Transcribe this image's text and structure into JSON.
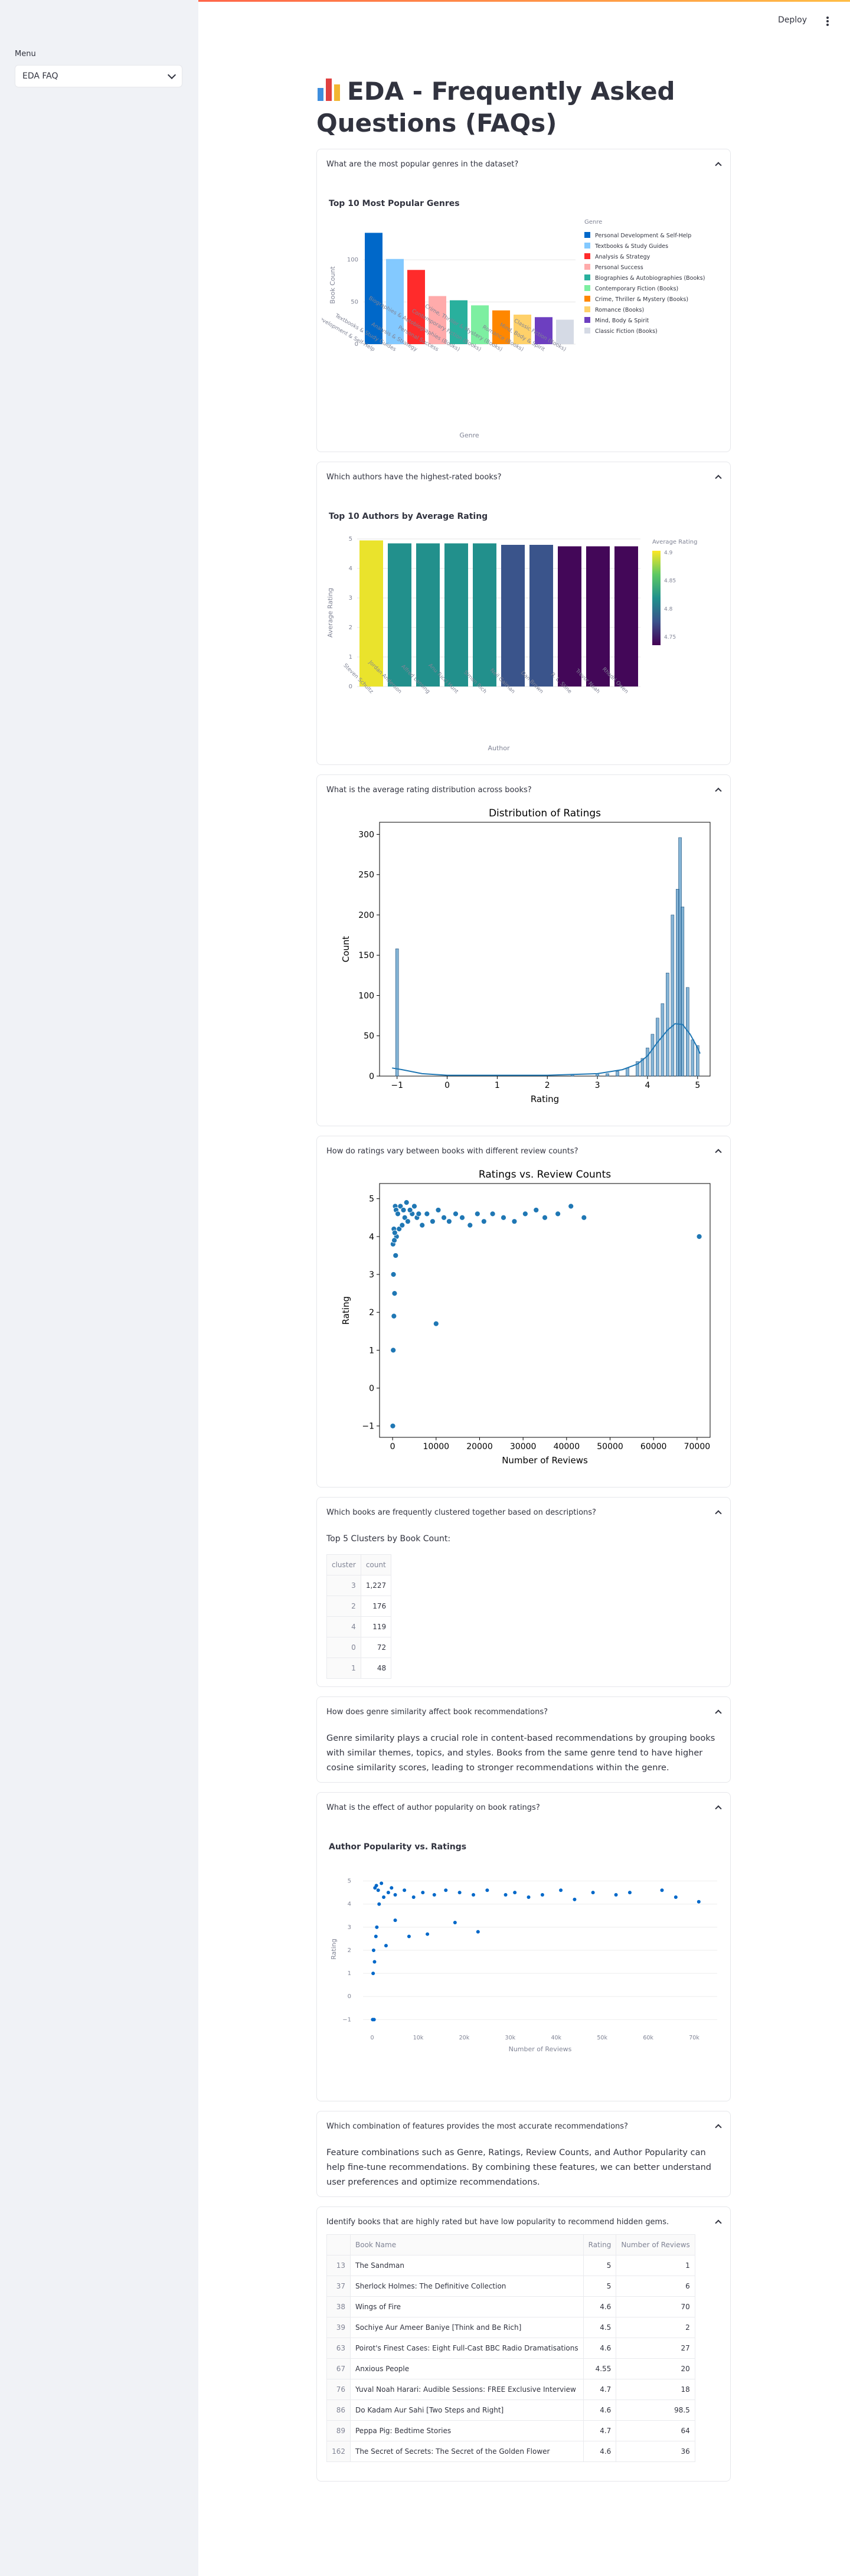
{
  "sidebar": {
    "label": "Menu",
    "selected": "EDA FAQ"
  },
  "header": {
    "deploy_label": "Deploy"
  },
  "page": {
    "title": "EDA - Frequently Asked Questions (FAQs)"
  },
  "faqs": {
    "genres": {
      "question": "What are the most popular genres in the dataset?",
      "chart_title": "Top 10 Most Popular Genres"
    },
    "authors": {
      "question": "Which authors have the highest-rated books?",
      "chart_title": "Top 10 Authors by Average Rating"
    },
    "rating_dist": {
      "question": "What is the average rating distribution across books?"
    },
    "rating_reviews": {
      "question": "How do ratings vary between books with different review counts?"
    },
    "clusters": {
      "question": "Which books are frequently clustered together based on descriptions?",
      "caption": "Top 5 Clusters by Book Count:",
      "columns": [
        "cluster",
        "count"
      ],
      "rows": [
        {
          "cluster": "3",
          "count": "1,227"
        },
        {
          "cluster": "2",
          "count": "176"
        },
        {
          "cluster": "4",
          "count": "119"
        },
        {
          "cluster": "0",
          "count": "72"
        },
        {
          "cluster": "1",
          "count": "48"
        }
      ]
    },
    "genre_similarity": {
      "question": "How does genre similarity affect book recommendations?",
      "answer": "Genre similarity plays a crucial role in content-based recommendations by grouping books with similar themes, topics, and styles. Books from the same genre tend to have higher cosine similarity scores, leading to stronger recommendations within the genre."
    },
    "author_popularity": {
      "question": "What is the effect of author popularity on book ratings?",
      "chart_title": "Author Popularity vs. Ratings"
    },
    "feature_combination": {
      "question": "Which combination of features provides the most accurate recommendations?",
      "answer": "Feature combinations such as Genre, Ratings, Review Counts, and Author Popularity can help fine-tune recommendations. By combining these features, we can better understand user preferences and optimize recommendations."
    },
    "hidden_gems": {
      "question": "Identify books that are highly rated but have low popularity to recommend hidden gems.",
      "columns": [
        "",
        "Book Name",
        "Rating",
        "Number of Reviews"
      ],
      "rows": [
        {
          "idx": "13",
          "name": "The Sandman",
          "rating": "5",
          "reviews": "1"
        },
        {
          "idx": "37",
          "name": "Sherlock Holmes: The Definitive Collection",
          "rating": "5",
          "reviews": "6"
        },
        {
          "idx": "38",
          "name": "Wings of Fire",
          "rating": "4.6",
          "reviews": "70"
        },
        {
          "idx": "39",
          "name": "Sochiye Aur Ameer Baniye [Think and Be Rich]",
          "rating": "4.5",
          "reviews": "2"
        },
        {
          "idx": "63",
          "name": "Poirot's Finest Cases: Eight Full-Cast BBC Radio Dramatisations",
          "rating": "4.6",
          "reviews": "27"
        },
        {
          "idx": "67",
          "name": "Anxious People",
          "rating": "4.55",
          "reviews": "20"
        },
        {
          "idx": "76",
          "name": "Yuval Noah Harari: Audible Sessions: FREE Exclusive Interview",
          "rating": "4.7",
          "reviews": "18"
        },
        {
          "idx": "86",
          "name": "Do Kadam Aur Sahi [Two Steps and Right]",
          "rating": "4.6",
          "reviews": "98.5"
        },
        {
          "idx": "89",
          "name": "Peppa Pig: Bedtime Stories",
          "rating": "4.7",
          "reviews": "64"
        },
        {
          "idx": "162",
          "name": "The Secret of Secrets: The Secret of the Golden Flower",
          "rating": "4.6",
          "reviews": "36"
        }
      ]
    }
  },
  "colors": {
    "accent": "#ff4b4b",
    "plot_blue": "#1f77b4"
  },
  "chart_data": [
    {
      "id": "genres",
      "type": "bar",
      "title": "Top 10 Most Popular Genres",
      "xlabel": "Genre",
      "ylabel": "Book Count",
      "legend_title": "Genre",
      "legend_placement": "right",
      "categories": [
        "Personal Development & Self-Help",
        "Textbooks & Study Guides",
        "Analysis & Strategy",
        "Personal Success",
        "Biographies & Autobiographies (Books)",
        "Contemporary Fiction (Books)",
        "Crime, Thriller & Mystery (Books)",
        "Romance (Books)",
        "Mind, Body & Spirit",
        "Classic Fiction (Books)"
      ],
      "values": [
        132,
        101,
        88,
        57,
        52,
        46,
        40,
        35,
        32,
        29
      ],
      "colors": [
        "#0068c9",
        "#83c9ff",
        "#ff2b2b",
        "#ffabab",
        "#29b09d",
        "#7defa1",
        "#ff8700",
        "#ffd16a",
        "#6d3fc0",
        "#d5dae5"
      ],
      "yticks": [
        0,
        50,
        100
      ],
      "ylim": [
        0,
        140
      ],
      "grid": true
    },
    {
      "id": "authors",
      "type": "bar",
      "title": "Top 10 Authors by Average Rating",
      "xlabel": "Author",
      "ylabel": "Average Rating",
      "colorbar_title": "Average Rating",
      "colorbar_ticks": [
        "4.9",
        "4.85",
        "4.8",
        "4.75"
      ],
      "categories": [
        "Steven Schultz",
        "Jordan Anderson",
        "Alfred Lansing",
        "Anu Tucci Hunt",
        "Simon Rich",
        "Neil Gaiman",
        "Dan Brown",
        "R. L. Stine",
        "Trevor Noah",
        "Rhodri Owen"
      ],
      "values": [
        4.95,
        4.85,
        4.85,
        4.85,
        4.85,
        4.8,
        4.8,
        4.75,
        4.75,
        4.75
      ],
      "yticks": [
        0,
        1,
        2,
        3,
        4,
        5
      ],
      "ylim": [
        0,
        5
      ],
      "grid": true
    },
    {
      "id": "rating_dist",
      "type": "bar",
      "title": "Distribution of Ratings",
      "xlabel": "Rating",
      "ylabel": "Count",
      "xlim": [
        -1.35,
        5.25
      ],
      "ylim": [
        0,
        315
      ],
      "xticks": [
        -1,
        0,
        1,
        2,
        3,
        4,
        5
      ],
      "yticks": [
        0,
        50,
        100,
        150,
        200,
        250,
        300
      ],
      "x": [
        -1,
        2.5,
        3,
        3.2,
        3.4,
        3.6,
        3.8,
        3.9,
        4.0,
        4.1,
        4.2,
        4.3,
        4.4,
        4.5,
        4.6,
        4.65,
        4.7,
        4.8,
        4.9,
        5.0
      ],
      "values": [
        158,
        2,
        3,
        3,
        6,
        10,
        18,
        22,
        35,
        52,
        72,
        90,
        128,
        200,
        232,
        296,
        210,
        110,
        45,
        38
      ],
      "kde": [
        [
          -1.1,
          10
        ],
        [
          -0.9,
          8
        ],
        [
          -0.5,
          3
        ],
        [
          0,
          1
        ],
        [
          1,
          1
        ],
        [
          2,
          1
        ],
        [
          3,
          3
        ],
        [
          3.5,
          8
        ],
        [
          3.8,
          15
        ],
        [
          4.0,
          25
        ],
        [
          4.2,
          42
        ],
        [
          4.4,
          57
        ],
        [
          4.55,
          65
        ],
        [
          4.7,
          64
        ],
        [
          4.85,
          52
        ],
        [
          5.0,
          35
        ],
        [
          5.05,
          28
        ]
      ]
    },
    {
      "id": "rating_reviews",
      "type": "scatter",
      "title": "Ratings vs. Review Counts",
      "xlabel": "Number of Reviews",
      "ylabel": "Rating",
      "xlim": [
        -3000,
        73000
      ],
      "ylim": [
        -1.3,
        5.4
      ],
      "xticks": [
        0,
        10000,
        20000,
        30000,
        40000,
        50000,
        60000,
        70000
      ],
      "yticks": [
        -1,
        0,
        1,
        2,
        3,
        4,
        5
      ],
      "points": [
        [
          50,
          -1
        ],
        [
          150,
          1
        ],
        [
          300,
          1.9
        ],
        [
          450,
          2.5
        ],
        [
          200,
          3.0
        ],
        [
          700,
          3.5
        ],
        [
          100,
          3.8
        ],
        [
          900,
          4.0
        ],
        [
          1500,
          4.2
        ],
        [
          2200,
          4.3
        ],
        [
          2800,
          4.5
        ],
        [
          3500,
          4.4
        ],
        [
          4500,
          4.6
        ],
        [
          5600,
          4.5
        ],
        [
          6800,
          4.3
        ],
        [
          7900,
          4.6
        ],
        [
          9200,
          4.4
        ],
        [
          10500,
          4.7
        ],
        [
          11800,
          4.5
        ],
        [
          13000,
          4.4
        ],
        [
          14500,
          4.6
        ],
        [
          16000,
          4.5
        ],
        [
          17800,
          4.3
        ],
        [
          19500,
          4.6
        ],
        [
          21000,
          4.4
        ],
        [
          23000,
          4.6
        ],
        [
          25500,
          4.5
        ],
        [
          28000,
          4.4
        ],
        [
          30500,
          4.6
        ],
        [
          33000,
          4.7
        ],
        [
          35000,
          4.5
        ],
        [
          38000,
          4.6
        ],
        [
          41000,
          4.8
        ],
        [
          44000,
          4.5
        ],
        [
          10000,
          1.7
        ],
        [
          70500,
          4.0
        ],
        [
          600,
          4.8
        ],
        [
          800,
          4.7
        ],
        [
          1200,
          4.6
        ],
        [
          1800,
          4.8
        ],
        [
          2500,
          4.7
        ],
        [
          3200,
          4.9
        ],
        [
          4000,
          4.7
        ],
        [
          5000,
          4.8
        ],
        [
          6000,
          4.6
        ],
        [
          300,
          4.2
        ],
        [
          400,
          3.9
        ],
        [
          500,
          4.1
        ]
      ]
    },
    {
      "id": "author_popularity",
      "type": "scatter",
      "title": "Author Popularity vs. Ratings",
      "xlabel": "Number of Reviews",
      "ylabel": "Rating",
      "xlim": [
        -2000,
        75000
      ],
      "ylim": [
        -1.4,
        5.5
      ],
      "xticks": [
        0,
        10000,
        20000,
        30000,
        40000,
        50000,
        60000,
        70000
      ],
      "xtick_labels": [
        "0",
        "10k",
        "20k",
        "30k",
        "40k",
        "50k",
        "60k",
        "70k"
      ],
      "yticks": [
        -1,
        0,
        1,
        2,
        3,
        4,
        5
      ],
      "points": [
        [
          100,
          -1
        ],
        [
          400,
          -1
        ],
        [
          200,
          1
        ],
        [
          500,
          1.5
        ],
        [
          300,
          2
        ],
        [
          800,
          2.6
        ],
        [
          3000,
          2.2
        ],
        [
          1000,
          3
        ],
        [
          5000,
          3.3
        ],
        [
          8000,
          2.6
        ],
        [
          12000,
          2.7
        ],
        [
          18000,
          3.2
        ],
        [
          23000,
          2.8
        ],
        [
          1500,
          4.0
        ],
        [
          2500,
          4.3
        ],
        [
          3500,
          4.5
        ],
        [
          5000,
          4.4
        ],
        [
          7000,
          4.6
        ],
        [
          9000,
          4.3
        ],
        [
          11000,
          4.5
        ],
        [
          13500,
          4.4
        ],
        [
          16000,
          4.6
        ],
        [
          19000,
          4.5
        ],
        [
          22000,
          4.4
        ],
        [
          25000,
          4.6
        ],
        [
          29000,
          4.4
        ],
        [
          31000,
          4.5
        ],
        [
          34000,
          4.3
        ],
        [
          37000,
          4.4
        ],
        [
          41000,
          4.6
        ],
        [
          44000,
          4.2
        ],
        [
          48000,
          4.5
        ],
        [
          53000,
          4.4
        ],
        [
          56000,
          4.5
        ],
        [
          63000,
          4.6
        ],
        [
          66000,
          4.3
        ],
        [
          71000,
          4.1
        ],
        [
          600,
          4.7
        ],
        [
          900,
          4.8
        ],
        [
          1300,
          4.6
        ],
        [
          2000,
          4.9
        ],
        [
          4200,
          4.7
        ]
      ]
    }
  ]
}
